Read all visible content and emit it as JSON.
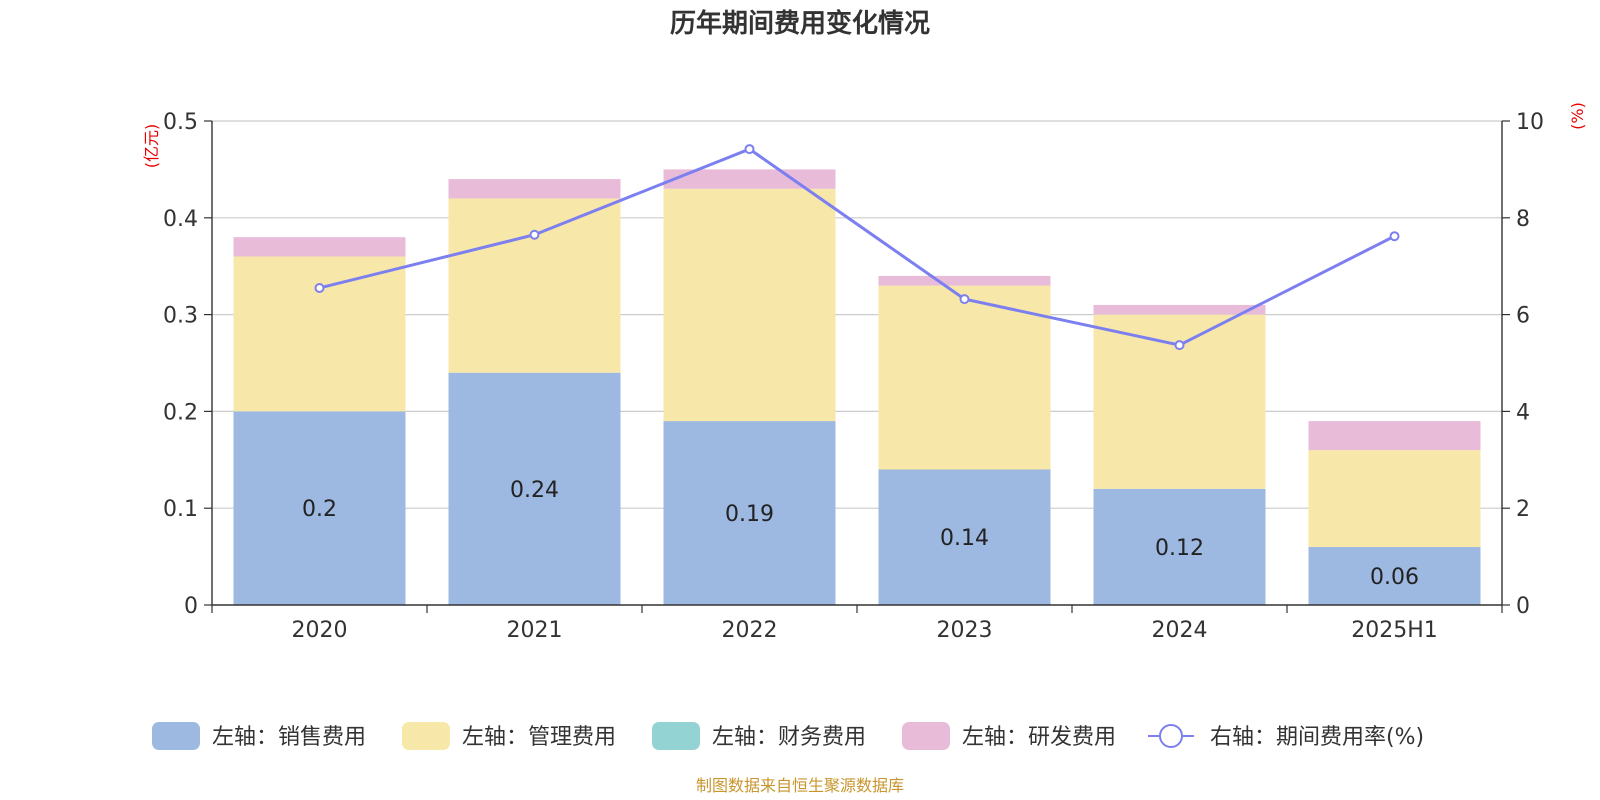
{
  "chart_data": {
    "type": "bar",
    "title": "历年期间费用变化情况",
    "categories": [
      "2020",
      "2021",
      "2022",
      "2023",
      "2024",
      "2025H1"
    ],
    "left_axis": {
      "unit": "(亿元)",
      "ylim": [
        0,
        0.5
      ],
      "ticks": [
        "0",
        "0.1",
        "0.2",
        "0.3",
        "0.4",
        "0.5"
      ]
    },
    "right_axis": {
      "unit": "(%)",
      "ylim": [
        0,
        10
      ],
      "ticks": [
        "0",
        "2",
        "4",
        "6",
        "8",
        "10"
      ]
    },
    "series": [
      {
        "name": "左轴：销售费用",
        "kind": "bar",
        "color": "#9db8e1",
        "values": [
          0.2,
          0.24,
          0.19,
          0.14,
          0.12,
          0.06
        ],
        "labels": [
          "0.2",
          "0.24",
          "0.19",
          "0.14",
          "0.12",
          "0.06"
        ]
      },
      {
        "name": "左轴：管理费用",
        "kind": "bar",
        "color": "#f7e7a8",
        "values": [
          0.16,
          0.18,
          0.24,
          0.19,
          0.18,
          0.1
        ]
      },
      {
        "name": "左轴：财务费用",
        "kind": "bar",
        "color": "#93d3d4",
        "values": [
          0,
          0,
          0,
          0,
          0,
          0
        ]
      },
      {
        "name": "左轴：研发费用",
        "kind": "bar",
        "color": "#e8bbd9",
        "values": [
          0.02,
          0.02,
          0.02,
          0.01,
          0.01,
          0.03
        ]
      },
      {
        "name": "右轴：期间费用率(%)",
        "kind": "line",
        "color": "#7b7ff0",
        "values": [
          6.55,
          7.65,
          9.42,
          6.32,
          5.37,
          7.62
        ]
      }
    ],
    "grid": true,
    "legend_position": "bottom",
    "source_text": "制图数据来自恒生聚源数据库"
  }
}
